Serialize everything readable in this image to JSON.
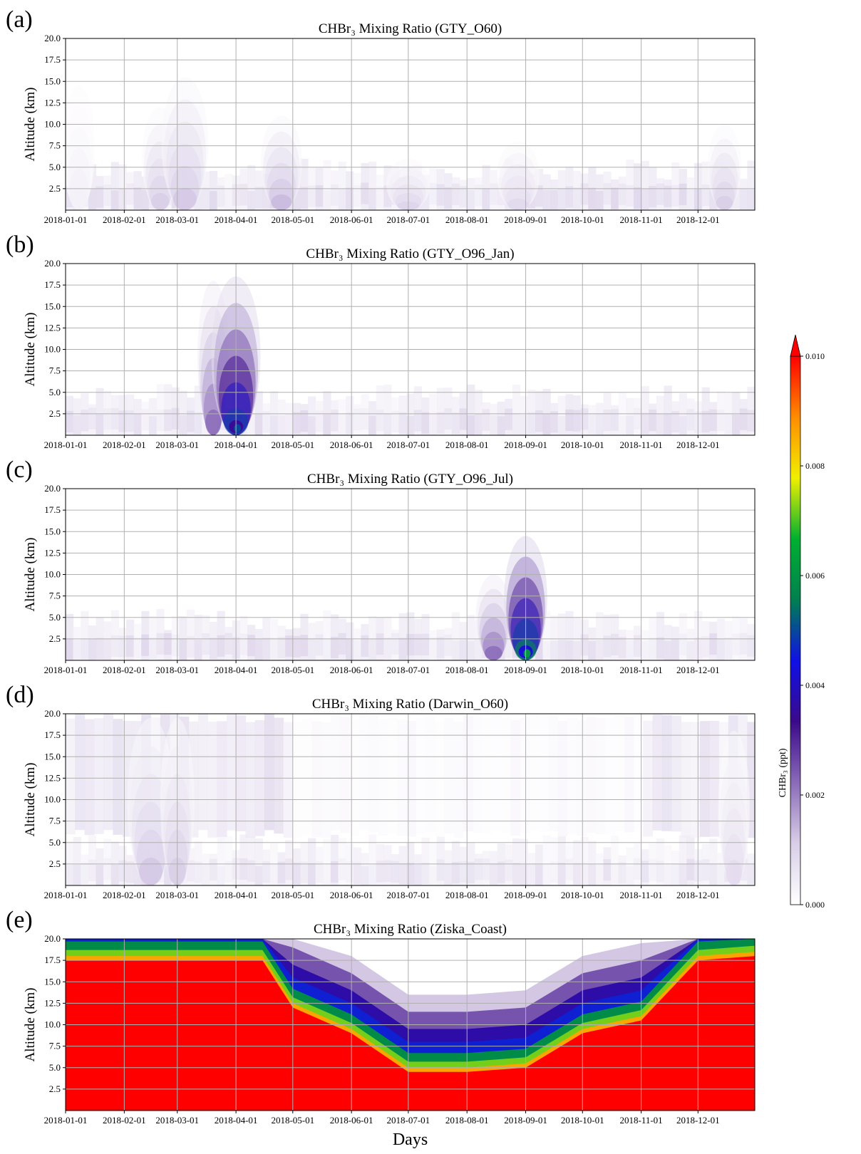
{
  "chart_data": [
    {
      "type": "heatmap",
      "panel_label": "(a)",
      "title": "CHBr₃ Mixing Ratio (GTY_O60)",
      "ylabel": "Altitude (km)",
      "xlabel": "",
      "x_tick_labels": [
        "2018-01-01",
        "2018-02-01",
        "2018-03-01",
        "2018-04-01",
        "2018-05-01",
        "2018-06-01",
        "2018-07-01",
        "2018-08-01",
        "2018-09-01",
        "2018-10-01",
        "2018-11-01",
        "2018-12-01"
      ],
      "y_tick_labels": [
        "2.5",
        "5.0",
        "7.5",
        "10.0",
        "12.5",
        "15.0",
        "17.5",
        "20.0"
      ],
      "ylim": [
        0,
        20
      ],
      "grid": true,
      "features": [
        {
          "date": "2018-01-08",
          "top_km": 14.5,
          "peak": 0.0004
        },
        {
          "date": "2018-02-20",
          "top_km": 12.0,
          "peak": 0.0012
        },
        {
          "date": "2018-03-05",
          "top_km": 15.5,
          "peak": 0.0013
        },
        {
          "date": "2018-04-25",
          "top_km": 11.0,
          "peak": 0.0015
        },
        {
          "date": "2018-07-01",
          "top_km": 6.0,
          "peak": 0.0011
        },
        {
          "date": "2018-08-28",
          "top_km": 8.0,
          "peak": 0.001
        },
        {
          "date": "2018-12-15",
          "top_km": 10.0,
          "peak": 0.0012
        }
      ]
    },
    {
      "type": "heatmap",
      "panel_label": "(b)",
      "title": "CHBr₃ Mixing Ratio (GTY_O96_Jan)",
      "ylabel": "Altitude (km)",
      "xlabel": "",
      "x_tick_labels": [
        "2018-01-01",
        "2018-02-01",
        "2018-03-01",
        "2018-04-01",
        "2018-05-01",
        "2018-06-01",
        "2018-07-01",
        "2018-08-01",
        "2018-09-01",
        "2018-10-01",
        "2018-11-01",
        "2018-12-01"
      ],
      "y_tick_labels": [
        "2.5",
        "5.0",
        "7.5",
        "10.0",
        "12.5",
        "15.0",
        "17.5",
        "20.0"
      ],
      "ylim": [
        0,
        20
      ],
      "grid": true,
      "features": [
        {
          "date": "2018-03-20",
          "top_km": 18.0,
          "peak": 0.0025
        },
        {
          "date": "2018-04-01",
          "top_km": 18.5,
          "peak": 0.005
        }
      ]
    },
    {
      "type": "heatmap",
      "panel_label": "(c)",
      "title": "CHBr₃ Mixing Ratio (GTY_O96_Jul)",
      "ylabel": "Altitude (km)",
      "xlabel": "",
      "x_tick_labels": [
        "2018-01-01",
        "2018-02-01",
        "2018-03-01",
        "2018-04-01",
        "2018-05-01",
        "2018-06-01",
        "2018-07-01",
        "2018-08-01",
        "2018-09-01",
        "2018-10-01",
        "2018-11-01",
        "2018-12-01"
      ],
      "y_tick_labels": [
        "2.5",
        "5.0",
        "7.5",
        "10.0",
        "12.5",
        "15.0",
        "17.5",
        "20.0"
      ],
      "ylim": [
        0,
        20
      ],
      "grid": true,
      "features": [
        {
          "date": "2018-08-15",
          "top_km": 10.0,
          "peak": 0.0025
        },
        {
          "date": "2018-09-01",
          "top_km": 14.5,
          "peak": 0.006
        }
      ]
    },
    {
      "type": "heatmap",
      "panel_label": "(d)",
      "title": "CHBr₃ Mixing Ratio (Darwin_O60)",
      "ylabel": "Altitude (km)",
      "xlabel": "",
      "x_tick_labels": [
        "2018-01-01",
        "2018-02-01",
        "2018-03-01",
        "2018-04-01",
        "2018-05-01",
        "2018-06-01",
        "2018-07-01",
        "2018-08-01",
        "2018-09-01",
        "2018-10-01",
        "2018-11-01",
        "2018-12-01"
      ],
      "y_tick_labels": [
        "2.5",
        "5.0",
        "7.5",
        "10.0",
        "12.5",
        "15.0",
        "17.5",
        "20.0"
      ],
      "ylim": [
        0,
        20
      ],
      "grid": true,
      "features": [
        {
          "date": "2018-02-15",
          "top_km": 19.5,
          "peak": 0.0013
        },
        {
          "date": "2018-03-01",
          "top_km": 19.5,
          "peak": 0.0012
        },
        {
          "date": "2018-12-20",
          "top_km": 18.0,
          "peak": 0.0009
        }
      ]
    },
    {
      "type": "heatmap",
      "panel_label": "(e)",
      "title": "CHBr₃ Mixing Ratio (Ziska_Coast)",
      "ylabel": "Altitude (km)",
      "xlabel": "Days",
      "x_tick_labels": [
        "2018-01-01",
        "2018-02-01",
        "2018-03-01",
        "2018-04-01",
        "2018-05-01",
        "2018-06-01",
        "2018-07-01",
        "2018-08-01",
        "2018-09-01",
        "2018-10-01",
        "2018-11-01",
        "2018-12-01"
      ],
      "y_tick_labels": [
        "2.5",
        "5.0",
        "7.5",
        "10.0",
        "12.5",
        "15.0",
        "17.5",
        "20.0"
      ],
      "ylim": [
        0,
        20
      ],
      "grid": true,
      "saturated_top_km": [
        {
          "date": "2018-01-01",
          "km": 17.5
        },
        {
          "date": "2018-04-15",
          "km": 17.5
        },
        {
          "date": "2018-05-01",
          "km": 12.0
        },
        {
          "date": "2018-06-01",
          "km": 9.0
        },
        {
          "date": "2018-07-01",
          "km": 4.5
        },
        {
          "date": "2018-08-01",
          "km": 4.5
        },
        {
          "date": "2018-09-01",
          "km": 5.0
        },
        {
          "date": "2018-10-01",
          "km": 9.0
        },
        {
          "date": "2018-11-01",
          "km": 10.5
        },
        {
          "date": "2018-12-01",
          "km": 17.5
        },
        {
          "date": "2018-12-31",
          "km": 18.0
        }
      ]
    }
  ],
  "colorbar": {
    "label": "CHBr₃ (ppt)",
    "ticks": [
      "0.000",
      "0.002",
      "0.004",
      "0.006",
      "0.008",
      "0.010"
    ],
    "range": [
      0,
      0.01
    ],
    "colormap": [
      "#ffffff",
      "#d9cfe8",
      "#8a6bb8",
      "#3b0a8a",
      "#1010e6",
      "#008050",
      "#00b030",
      "#f0f000",
      "#ff8c00",
      "#ff0000"
    ],
    "extend": "max"
  }
}
